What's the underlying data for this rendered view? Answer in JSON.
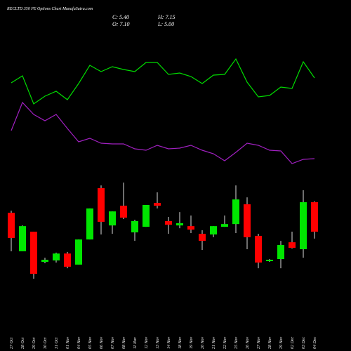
{
  "chart_data": {
    "type": "candlestick",
    "title": "RECLTD 350 PE Options Chart MunafaSutra.com",
    "annotations": [
      "C: 5.40",
      "H: 7.15",
      "O: 7.10",
      "L: 5.00"
    ],
    "categories": [
      "27 Oct",
      "28 Oct",
      "29 Oct",
      "30 Oct",
      "31 Oct",
      "01 Nov",
      "04 Nov",
      "05 Nov",
      "06 Nov",
      "07 Nov",
      "08 Nov",
      "11 Nov",
      "12 Nov",
      "13 Nov",
      "14 Nov",
      "18 Nov",
      "19 Nov",
      "20 Nov",
      "21 Nov",
      "22 Nov",
      "25 Nov",
      "26 Nov",
      "27 Nov",
      "28 Nov",
      "29 Nov",
      "02 Dec",
      "03 Dec",
      "04 Dec"
    ],
    "open": [
      6.49,
      4.27,
      5.4,
      3.66,
      3.74,
      4.14,
      3.5,
      4.95,
      7.91,
      5.76,
      6.9,
      5.36,
      5.68,
      7.06,
      6.01,
      5.76,
      5.72,
      5.28,
      5.24,
      5.68,
      5.84,
      6.98,
      5.16,
      3.7,
      3.82,
      4.79,
      4.39,
      7.1
    ],
    "high": [
      6.61,
      5.76,
      5.4,
      3.9,
      4.19,
      4.23,
      4.95,
      6.74,
      8.07,
      6.57,
      8.23,
      6.09,
      6.94,
      7.67,
      6.25,
      6.53,
      6.33,
      5.48,
      5.72,
      6.33,
      8.07,
      7.38,
      5.28,
      3.82,
      4.87,
      5.4,
      7.79,
      7.15
    ],
    "low": [
      4.27,
      4.27,
      2.69,
      3.58,
      3.62,
      3.29,
      3.5,
      4.95,
      5.24,
      5.28,
      6.13,
      4.87,
      5.68,
      6.74,
      5.28,
      5.6,
      5.32,
      4.35,
      5.08,
      5.68,
      5.32,
      4.39,
      3.29,
      3.66,
      3.29,
      4.43,
      3.9,
      5.0
    ],
    "close": [
      5.04,
      5.72,
      2.97,
      3.78,
      4.14,
      3.38,
      4.95,
      6.74,
      5.97,
      6.57,
      6.21,
      6.01,
      6.94,
      6.9,
      5.8,
      5.89,
      5.52,
      4.87,
      5.72,
      5.84,
      7.26,
      5.08,
      3.62,
      3.78,
      4.63,
      4.47,
      7.1,
      5.4
    ],
    "up_color": "#00e600",
    "down_color": "#ff0000",
    "ylim": [
      2,
      8.6
    ],
    "lines": {
      "ylim": [
        0,
        180
      ],
      "series": [
        {
          "color": "#00dd00",
          "values": [
            122,
            132,
            92,
            103,
            110,
            98,
            121,
            147,
            138,
            145,
            141,
            138,
            151,
            151,
            134,
            136,
            131,
            121,
            133,
            134,
            156,
            123,
            102,
            104,
            116,
            114,
            152,
            129
          ]
        },
        {
          "color": "#a020c0",
          "values": [
            54,
            94,
            77,
            68,
            77,
            57,
            38,
            43,
            36,
            35,
            35,
            28,
            26,
            33,
            28,
            29,
            33,
            26,
            21,
            11,
            23,
            36,
            33,
            26,
            25,
            7,
            13,
            14
          ]
        }
      ]
    }
  }
}
